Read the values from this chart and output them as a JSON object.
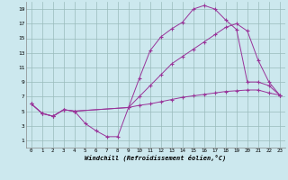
{
  "title": "",
  "xlabel": "Windchill (Refroidissement éolien,°C)",
  "ylabel": "",
  "bg_color": "#cce8ee",
  "line_color": "#993399",
  "grid_color": "#99bbbb",
  "xlim": [
    -0.5,
    23.5
  ],
  "ylim": [
    0,
    20
  ],
  "xticks": [
    0,
    1,
    2,
    3,
    4,
    5,
    6,
    7,
    8,
    9,
    10,
    11,
    12,
    13,
    14,
    15,
    16,
    17,
    18,
    19,
    20,
    21,
    22,
    23
  ],
  "yticks": [
    1,
    3,
    5,
    7,
    9,
    11,
    13,
    15,
    17,
    19
  ],
  "line1": [
    [
      0,
      6
    ],
    [
      1,
      4.7
    ],
    [
      2,
      4.3
    ],
    [
      3,
      5.2
    ],
    [
      4,
      5.0
    ],
    [
      5,
      3.3
    ],
    [
      6,
      2.3
    ],
    [
      7,
      1.5
    ],
    [
      8,
      1.5
    ],
    [
      9,
      5.5
    ],
    [
      10,
      5.8
    ],
    [
      11,
      6.0
    ],
    [
      12,
      6.3
    ],
    [
      13,
      6.6
    ],
    [
      14,
      6.9
    ],
    [
      15,
      7.1
    ],
    [
      16,
      7.3
    ],
    [
      17,
      7.5
    ],
    [
      18,
      7.7
    ],
    [
      19,
      7.8
    ],
    [
      20,
      7.9
    ],
    [
      21,
      7.9
    ],
    [
      22,
      7.5
    ],
    [
      23,
      7.2
    ]
  ],
  "line2": [
    [
      0,
      6
    ],
    [
      1,
      4.7
    ],
    [
      2,
      4.3
    ],
    [
      3,
      5.2
    ],
    [
      4,
      5.0
    ],
    [
      9,
      5.5
    ],
    [
      10,
      9.5
    ],
    [
      11,
      13.3
    ],
    [
      12,
      15.2
    ],
    [
      13,
      16.3
    ],
    [
      14,
      17.2
    ],
    [
      15,
      19.0
    ],
    [
      16,
      19.5
    ],
    [
      17,
      19.0
    ],
    [
      18,
      17.5
    ],
    [
      19,
      16.2
    ],
    [
      20,
      9.0
    ],
    [
      21,
      9.0
    ],
    [
      22,
      8.5
    ],
    [
      23,
      7.2
    ]
  ],
  "line3": [
    [
      0,
      6
    ],
    [
      1,
      4.7
    ],
    [
      2,
      4.3
    ],
    [
      3,
      5.2
    ],
    [
      4,
      5.0
    ],
    [
      9,
      5.5
    ],
    [
      10,
      7.0
    ],
    [
      11,
      8.5
    ],
    [
      12,
      10.0
    ],
    [
      13,
      11.5
    ],
    [
      14,
      12.5
    ],
    [
      15,
      13.5
    ],
    [
      16,
      14.5
    ],
    [
      17,
      15.5
    ],
    [
      18,
      16.5
    ],
    [
      19,
      17.0
    ],
    [
      20,
      16.0
    ],
    [
      21,
      12.0
    ],
    [
      22,
      9.0
    ],
    [
      23,
      7.2
    ]
  ]
}
